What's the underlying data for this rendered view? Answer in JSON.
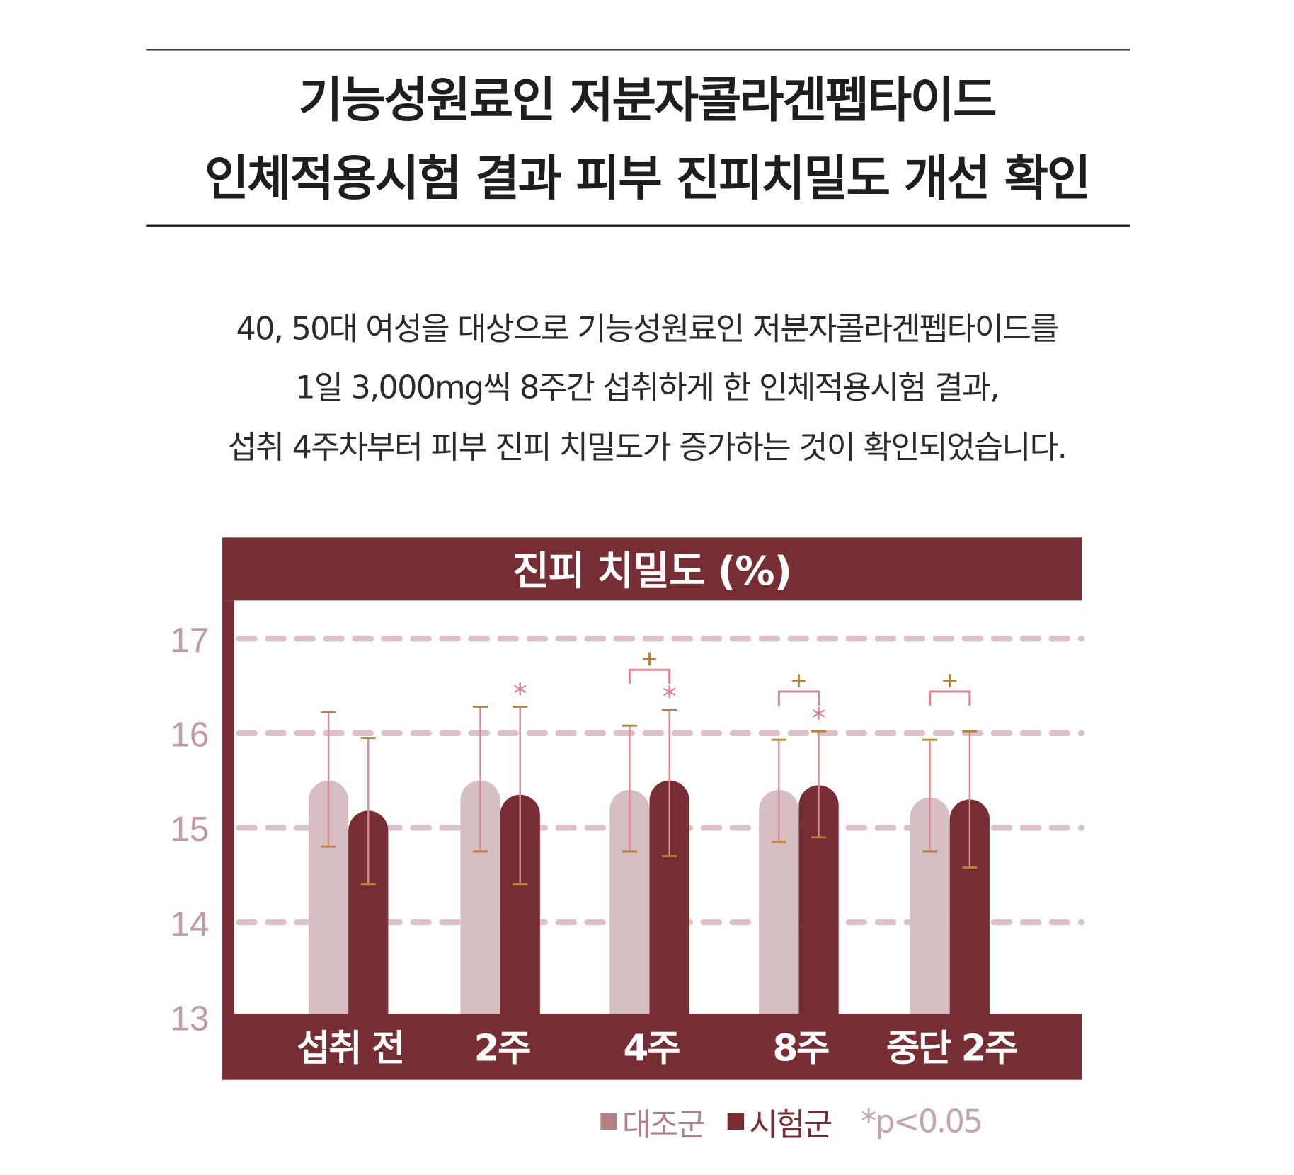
{
  "header": {
    "title_lines": [
      "기능성원료인 저분자콜라겐펩타이드",
      "인체적용시험 결과 피부 진피치밀도 개선 확인"
    ]
  },
  "description": {
    "lines": [
      "40, 50대 여성을 대상으로 기능성원료인 저분자콜라겐펩타이드를",
      "1일 3,000mg씩 8주간 섭취하게 한 인체적용시험 결과,",
      "섭취 4주차부터 피부 진피 치밀도가 증가하는 것이 확인되었습니다."
    ]
  },
  "colors": {
    "brand": "#762d34",
    "control": "#d6bec3",
    "test": "#762d34",
    "error_bar": "#e08891",
    "error_cap": "#b8823a",
    "gridline": "#dcc2c8",
    "axis_tick": "#c29ba1",
    "legend_control": "#b08085",
    "significance": "#e07f89"
  },
  "legend": {
    "control_label": "대조군",
    "test_label": "시험군",
    "note": "*p<0.05"
  },
  "chart_data": {
    "type": "bar",
    "title": "진피 치밀도 (%)",
    "xlabel": "",
    "ylabel": "",
    "ylim": [
      13,
      17
    ],
    "yticks": [
      13,
      14,
      15,
      16,
      17
    ],
    "grid": true,
    "grid_style": "dashed",
    "legend_position": "bottom-right",
    "categories": [
      "섭취 전",
      "2주",
      "4주",
      "8주",
      "중단 2주"
    ],
    "series": [
      {
        "name": "대조군",
        "values": [
          15.5,
          15.5,
          15.4,
          15.4,
          15.32
        ],
        "error_low": [
          14.8,
          14.75,
          14.75,
          14.85,
          14.75
        ],
        "error_high": [
          16.22,
          16.28,
          16.08,
          15.93,
          15.93
        ]
      },
      {
        "name": "시험군",
        "values": [
          15.18,
          15.35,
          15.5,
          15.45,
          15.3
        ],
        "error_low": [
          14.4,
          14.4,
          14.7,
          14.9,
          14.58
        ],
        "error_high": [
          15.95,
          16.28,
          16.25,
          16.02,
          16.02
        ]
      }
    ],
    "annotations": [
      {
        "category": "2주",
        "series": "시험군",
        "mark": "*"
      },
      {
        "category": "4주",
        "series": "시험군",
        "mark": "*"
      },
      {
        "category": "8주",
        "series": "시험군",
        "mark": "*"
      },
      {
        "category": "4주",
        "type": "bracket",
        "mark": "+"
      },
      {
        "category": "8주",
        "type": "bracket",
        "mark": "+"
      },
      {
        "category": "중단 2주",
        "type": "bracket",
        "mark": "+"
      }
    ],
    "significance_note": "*p<0.05"
  }
}
